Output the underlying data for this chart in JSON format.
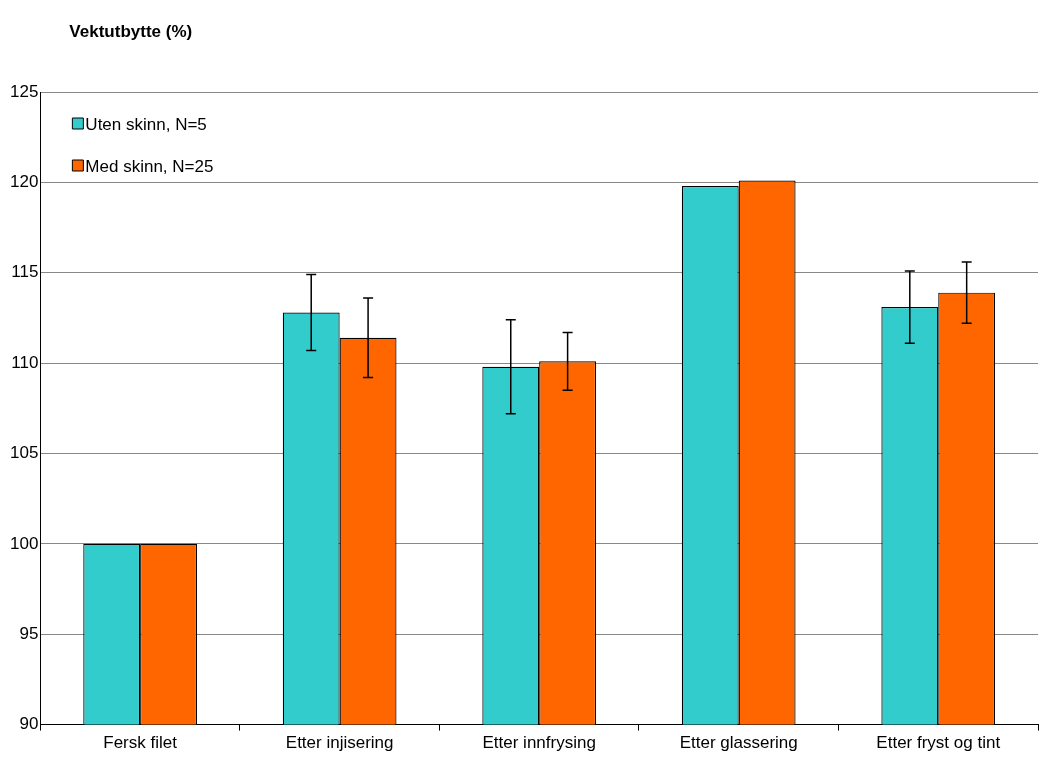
{
  "chart_data": {
    "type": "bar",
    "title": "Vektutbytte (%)",
    "categories": [
      "Fersk filet",
      "Etter injisering",
      "Etter innfrysing",
      "Etter glassering",
      "Etter fryst og tint"
    ],
    "series": [
      {
        "name": "Uten skinn, N=5",
        "color": "#33cccc",
        "values": [
          100,
          112.8,
          109.8,
          119.8,
          113.1
        ],
        "errors": [
          null,
          2.1,
          2.6,
          null,
          2.0
        ]
      },
      {
        "name": "Med skinn, N=25",
        "color": "#ff6600",
        "values": [
          100,
          111.4,
          110.1,
          120.1,
          113.9
        ],
        "errors": [
          null,
          2.2,
          1.6,
          null,
          1.7
        ]
      }
    ],
    "ylim": [
      90,
      125
    ],
    "yticks": [
      90,
      95,
      100,
      105,
      110,
      115,
      120,
      125
    ],
    "grid": "y",
    "legend": "top left"
  }
}
